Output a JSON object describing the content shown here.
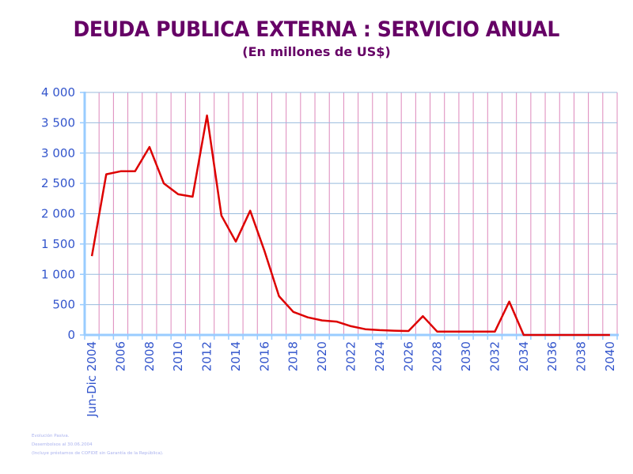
{
  "title": "DEUDA PUBLICA EXTERNA : SERVICIO ANUAL",
  "subtitle": "(En millones de US$)",
  "footnotes": [
    "Evolución Pasiva.",
    "Desembolsos al 30.06.2004",
    "(Incluye préstamos de COFIDE sin Garantía de la República)."
  ],
  "colors": {
    "title": "#660066",
    "line": "#dd0000",
    "axis_text": "#3355cc",
    "h_grid": "#99bbdd",
    "v_grid": "#dd88bb",
    "axis": "#99ccff"
  },
  "chart_data": {
    "type": "line",
    "title": "DEUDA PUBLICA EXTERNA : SERVICIO ANUAL",
    "subtitle": "(En millones de US$)",
    "xlabel": "",
    "ylabel": "",
    "ylim": [
      0,
      4000
    ],
    "yticks": [
      0,
      500,
      1000,
      1500,
      2000,
      2500,
      3000,
      3500,
      4000
    ],
    "ytick_labels": [
      "0",
      "500",
      "1 000",
      "1 500",
      "2 000",
      "2 500",
      "3 000",
      "3 500",
      "4 000"
    ],
    "grid": true,
    "categories": [
      "Jun-Dic 2004",
      "2005",
      "2006",
      "2007",
      "2008",
      "2009",
      "2010",
      "2011",
      "2012",
      "2013",
      "2014",
      "2015",
      "2016",
      "2017",
      "2018",
      "2019",
      "2020",
      "2021",
      "2022",
      "2023",
      "2024",
      "2025",
      "2026",
      "2027",
      "2028",
      "2029",
      "2030",
      "2031",
      "2032",
      "2033",
      "2034",
      "2035",
      "2036",
      "2037",
      "2038",
      "2039",
      "2040"
    ],
    "xtick_labels_shown": {
      "0": "Jun-Dic 2004",
      "2": "2006",
      "4": "2008",
      "6": "2010",
      "8": "2012",
      "10": "2014",
      "12": "2016",
      "14": "2018",
      "16": "2020",
      "18": "2022",
      "20": "2024",
      "22": "2026",
      "24": "2028",
      "26": "2030",
      "28": "2032",
      "30": "2034",
      "32": "2036",
      "34": "2038",
      "36": "2040"
    },
    "series": [
      {
        "name": "Servicio anual",
        "values": [
          1300,
          2650,
          2700,
          2700,
          3100,
          2500,
          2320,
          2280,
          3620,
          1970,
          1540,
          2050,
          1380,
          640,
          380,
          290,
          240,
          220,
          145,
          95,
          80,
          70,
          65,
          310,
          55,
          55,
          55,
          55,
          55,
          550,
          0,
          0,
          0,
          0,
          0,
          0,
          0
        ]
      }
    ]
  }
}
